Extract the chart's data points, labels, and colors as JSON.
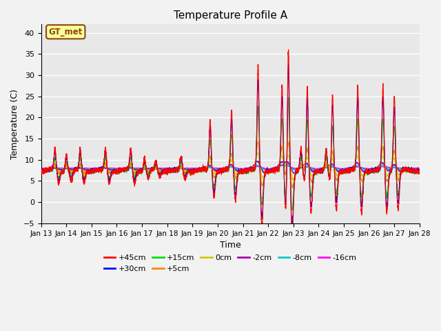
{
  "title": "Temperature Profile A",
  "xlabel": "Time",
  "ylabel": "Temperature (C)",
  "ylim": [
    -5,
    42
  ],
  "yticks": [
    -5,
    0,
    5,
    10,
    15,
    20,
    25,
    30,
    35,
    40
  ],
  "xtick_labels": [
    "Jan 13",
    "Jan 14",
    "Jan 15",
    "Jan 16",
    "Jan 17",
    "Jan 18",
    "Jan 19",
    "Jan 20",
    "Jan 21",
    "Jan 22",
    "Jan 23",
    "Jan 24",
    "Jan 25",
    "Jan 26",
    "Jan 27",
    "Jan 28"
  ],
  "annotation_text": "GT_met",
  "annotation_color": "#8B4513",
  "annotation_bg": "#FFFF99",
  "series_colors": {
    "+45cm": "#FF0000",
    "+30cm": "#0000FF",
    "+15cm": "#00DD00",
    "+5cm": "#FF8800",
    "0cm": "#CCCC00",
    "-2cm": "#AA00AA",
    "-8cm": "#00CCCC",
    "-16cm": "#FF00FF"
  },
  "background_color": "#E8E8E8",
  "grid_color": "#FFFFFF",
  "legend_row1": [
    "+45cm",
    "+30cm",
    "+15cm",
    "+5cm",
    "0cm",
    "-2cm"
  ],
  "legend_row2": [
    "-8cm",
    "-16cm"
  ]
}
